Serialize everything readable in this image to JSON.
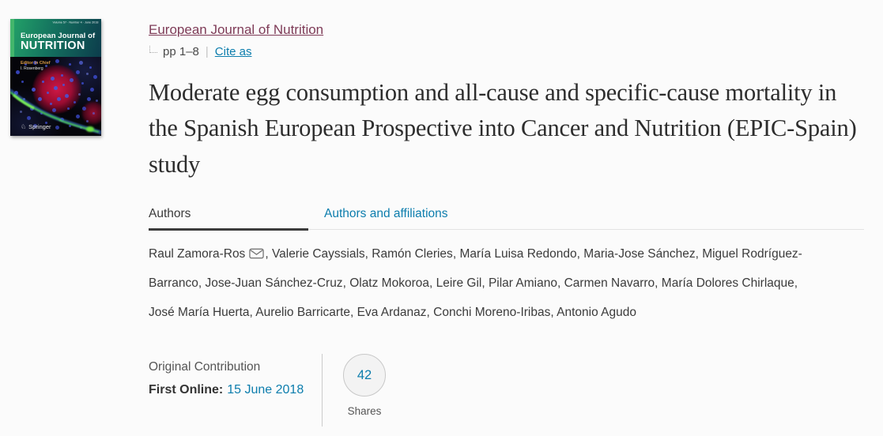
{
  "cover": {
    "journal_name_line1": "European Journal of",
    "journal_name_line2": "NUTRITION",
    "issue_info": "Volume 57 · Number 4 · June 2018",
    "editor_label": "Editor in Chief",
    "editor_name": "I. Rosenberg",
    "publisher": "Springer",
    "colors": {
      "band_green": "#23a368",
      "band_dark": "#0c3c4c",
      "spine_stripe": "#43b66c"
    }
  },
  "header": {
    "journal_link": "European Journal of Nutrition",
    "pages": "pp 1–8",
    "separator": "|",
    "cite_as": "Cite as"
  },
  "title": "Moderate egg consumption and all-cause and specific-cause mortality in the Spanish European Prospective into Cancer and Nutrition (EPIC-Spain) study",
  "tabs": [
    {
      "label": "Authors",
      "active": true
    },
    {
      "label": "Authors and affiliations",
      "active": false
    }
  ],
  "authors": {
    "list": [
      {
        "name": "Raul Zamora-Ros",
        "corresponding": true
      },
      {
        "name": "Valerie Cayssials"
      },
      {
        "name": "Ramón Cleries"
      },
      {
        "name": "María Luisa Redondo"
      },
      {
        "name": "Maria-Jose Sánchez"
      },
      {
        "name": "Miguel Rodríguez-Barranco"
      },
      {
        "name": "Jose-Juan Sánchez-Cruz"
      },
      {
        "name": "Olatz Mokoroa"
      },
      {
        "name": "Leire Gil"
      },
      {
        "name": "Pilar Amiano"
      },
      {
        "name": "Carmen Navarro"
      },
      {
        "name": "María Dolores Chirlaque"
      },
      {
        "name": "José María Huerta"
      },
      {
        "name": "Aurelio Barricarte"
      },
      {
        "name": "Eva Ardanaz"
      },
      {
        "name": "Conchi Moreno-Iribas"
      },
      {
        "name": "Antonio Agudo"
      }
    ],
    "icons": {
      "corresponding_author": "envelope-icon"
    }
  },
  "meta": {
    "article_type": "Original Contribution",
    "first_online_label": "First Online:",
    "first_online_date": "15 June 2018"
  },
  "shares": {
    "count": "42",
    "label": "Shares"
  },
  "colors": {
    "link_blue": "#0c7dad",
    "journal_link_maroon": "#7e3b57",
    "active_tab_underline": "#3c3c3c"
  }
}
